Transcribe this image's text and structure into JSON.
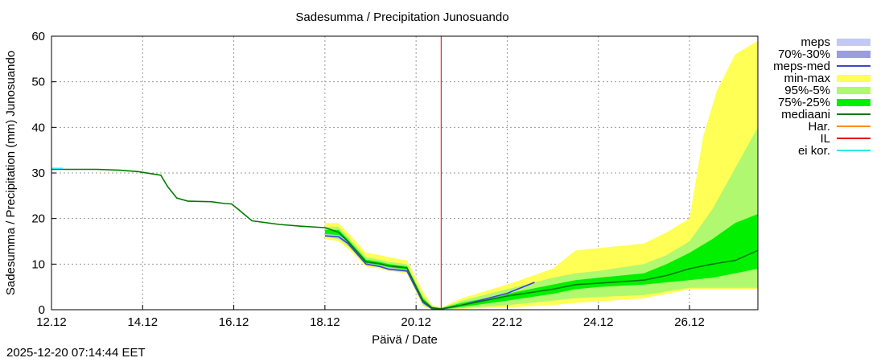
{
  "chart_data": {
    "type": "area",
    "title": "Sadesumma / Precipitation  Junosuando",
    "xlabel": "Päivä / Date",
    "ylabel": "Sadesumma / Precipitation (mm)  Junosuando",
    "xlim": [
      0,
      15.5
    ],
    "ylim": [
      0,
      60
    ],
    "x_unit": "days since 12.12",
    "grid": true,
    "x_tick_values": [
      0,
      2,
      4,
      6,
      8,
      10,
      12,
      14
    ],
    "x_tick_labels": [
      "12.12",
      "14.12",
      "16.12",
      "18.12",
      "20.12",
      "22.12",
      "24.12",
      "26.12"
    ],
    "y_tick_values": [
      0,
      10,
      20,
      30,
      40,
      50,
      60
    ],
    "y_tick_labels": [
      "0",
      "10",
      "20",
      "30",
      "40",
      "50",
      "60"
    ],
    "forecast_start_x": 8.55,
    "legend_position": "right",
    "legend": [
      {
        "key": "meps",
        "label": "meps",
        "color": "#c4c8f5",
        "kind": "band"
      },
      {
        "key": "p70_30",
        "label": "70%-30%",
        "color": "#9a9de0",
        "kind": "band"
      },
      {
        "key": "meps_med",
        "label": "meps-med",
        "color": "#3c48c4",
        "kind": "line"
      },
      {
        "key": "minmax",
        "label": "min-max",
        "color": "#ffff55",
        "kind": "band"
      },
      {
        "key": "p95_5",
        "label": "95%-5%",
        "color": "#b0f870",
        "kind": "band"
      },
      {
        "key": "p75_25",
        "label": "75%-25%",
        "color": "#00f000",
        "kind": "band"
      },
      {
        "key": "mediaani",
        "label": "mediaani",
        "color": "#007a00",
        "kind": "line"
      },
      {
        "key": "har",
        "label": "Har.",
        "color": "#ff8c1a",
        "kind": "line"
      },
      {
        "key": "il",
        "label": "IL",
        "color": "#e00000",
        "kind": "line"
      },
      {
        "key": "eikor",
        "label": "ei kor.",
        "color": "#30e8e8",
        "kind": "line"
      }
    ],
    "series": [
      {
        "name": "min-max",
        "type": "band",
        "x": [
          0,
          6.0,
          6.3,
          6.5,
          6.9,
          7.2,
          7.4,
          7.8,
          8.15,
          8.35,
          8.55,
          9.0,
          10.0,
          11.0,
          11.5,
          12.0,
          13.0,
          13.5,
          14.0,
          14.3,
          14.6,
          15.0,
          15.5
        ],
        "upper": [
          null,
          19.0,
          19.0,
          17.0,
          12.5,
          12.0,
          11.5,
          10.8,
          4.0,
          1.0,
          0.5,
          2.5,
          5.5,
          9.0,
          13.0,
          13.5,
          14.5,
          17.0,
          20.0,
          38.0,
          48.0,
          56.0,
          59.0
        ],
        "lower": [
          null,
          15.5,
          15.0,
          13.5,
          9.5,
          9.0,
          8.5,
          8.0,
          0.8,
          0.0,
          0.0,
          0.2,
          0.5,
          1.0,
          1.5,
          1.8,
          2.5,
          3.5,
          4.5,
          4.5,
          4.5,
          4.5,
          4.5
        ]
      },
      {
        "name": "95%-5%",
        "type": "band",
        "x": [
          6.0,
          6.3,
          6.5,
          6.9,
          7.2,
          7.4,
          7.8,
          8.15,
          8.35,
          8.55,
          9.0,
          10.0,
          11.0,
          11.5,
          12.0,
          13.0,
          13.5,
          14.0,
          14.5,
          15.0,
          15.5
        ],
        "upper": [
          18.2,
          18.2,
          16.0,
          11.5,
          11.0,
          10.5,
          10.0,
          3.0,
          0.8,
          0.4,
          2.0,
          4.5,
          7.0,
          8.0,
          8.5,
          10.0,
          12.0,
          15.0,
          22.0,
          31.0,
          40.0
        ],
        "lower": [
          16.0,
          15.5,
          14.0,
          10.0,
          9.5,
          9.0,
          8.4,
          1.0,
          0.1,
          0.0,
          0.3,
          1.0,
          2.0,
          2.5,
          2.8,
          3.2,
          4.0,
          4.8,
          4.8,
          4.8,
          4.8
        ]
      },
      {
        "name": "75%-25%",
        "type": "band",
        "x": [
          6.0,
          6.3,
          6.5,
          6.9,
          7.2,
          7.4,
          7.8,
          8.15,
          8.35,
          8.55,
          9.0,
          10.0,
          11.0,
          11.5,
          12.0,
          13.0,
          13.5,
          14.0,
          14.5,
          15.0,
          15.5
        ],
        "upper": [
          17.5,
          17.5,
          15.5,
          11.0,
          10.5,
          10.0,
          9.5,
          2.5,
          0.6,
          0.3,
          1.5,
          3.5,
          5.5,
          6.5,
          7.0,
          8.0,
          10.0,
          12.5,
          15.5,
          19.0,
          21.0
        ],
        "lower": [
          16.5,
          16.0,
          14.5,
          10.2,
          9.8,
          9.3,
          8.8,
          1.5,
          0.2,
          0.0,
          0.6,
          2.0,
          3.5,
          4.5,
          5.0,
          5.5,
          6.0,
          6.5,
          7.0,
          8.0,
          9.0
        ]
      },
      {
        "name": "meps",
        "type": "band",
        "x": [
          6.0,
          6.3,
          6.5,
          6.9,
          7.2,
          7.4,
          7.8,
          8.15,
          8.35,
          8.55,
          9.0,
          10.0,
          10.6
        ],
        "upper": [
          16.6,
          16.4,
          15.0,
          10.2,
          9.8,
          9.2,
          8.8,
          2.0,
          0.4,
          0.2,
          1.2,
          3.8,
          6.2
        ],
        "lower": [
          16.0,
          15.6,
          14.3,
          9.8,
          9.3,
          8.6,
          8.2,
          1.3,
          0.1,
          0.0,
          0.8,
          3.4,
          5.8
        ]
      },
      {
        "name": "meps-med",
        "type": "line",
        "x": [
          6.0,
          6.3,
          6.5,
          6.9,
          7.2,
          7.4,
          7.8,
          8.15,
          8.35,
          8.55,
          9.0,
          10.0,
          10.6
        ],
        "y": [
          16.2,
          16.0,
          14.6,
          10.0,
          9.5,
          8.9,
          8.5,
          1.6,
          0.2,
          0.1,
          1.0,
          3.6,
          6.0
        ]
      },
      {
        "name": "mediaani",
        "type": "line",
        "x": [
          0,
          1.0,
          1.5,
          1.9,
          2.4,
          2.55,
          2.75,
          3.0,
          3.5,
          3.8,
          3.95,
          4.1,
          4.4,
          5.0,
          5.5,
          6.0,
          6.3,
          6.5,
          6.9,
          7.2,
          7.4,
          7.8,
          8.15,
          8.35,
          8.55,
          9.0,
          10.0,
          11.0,
          11.5,
          12.0,
          13.0,
          13.5,
          14.0,
          14.5,
          14.8,
          15.0,
          15.5
        ],
        "y": [
          30.8,
          30.8,
          30.6,
          30.3,
          29.5,
          27.0,
          24.5,
          23.8,
          23.7,
          23.3,
          23.2,
          22.0,
          19.5,
          18.7,
          18.3,
          18.0,
          17.0,
          15.0,
          10.5,
          10.1,
          9.6,
          9.2,
          2.0,
          0.4,
          0.2,
          1.0,
          3.0,
          4.5,
          5.5,
          5.8,
          6.5,
          7.5,
          9.0,
          10.0,
          10.5,
          10.8,
          13.0
        ]
      },
      {
        "name": "ei kor.",
        "type": "line",
        "x": [
          0,
          0.25
        ],
        "y": [
          31.0,
          31.0
        ]
      },
      {
        "name": "IL",
        "type": "vline",
        "x": 8.55
      }
    ]
  },
  "timestamp": "2025-12-20 07:14:44 EET"
}
